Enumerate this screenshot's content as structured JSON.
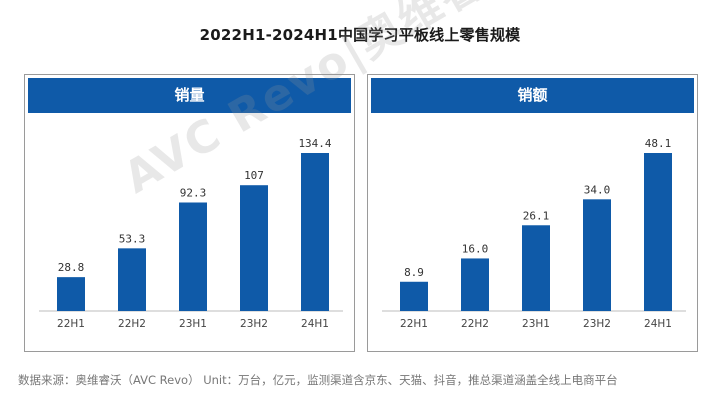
{
  "title": "2022H1-2024H1中国学习平板线上零售规模",
  "watermark": "AVC Revo|奥维睿沃",
  "source": "数据来源：奥维睿沃（AVC Revo） Unit：万台，亿元，监测渠道含京东、天猫、抖音，推总渠道涵盖全线上电商平台",
  "colors": {
    "bar": "#0f5aa8",
    "header": "#0f5aa8"
  },
  "chart_data": [
    {
      "type": "bar",
      "title": "销量",
      "categories": [
        "22H1",
        "22H2",
        "23H1",
        "23H2",
        "24H1"
      ],
      "values": [
        28.8,
        53.3,
        92.3,
        107,
        134.4
      ],
      "value_labels": [
        "28.8",
        "53.3",
        "92.3",
        "107",
        "134.4"
      ],
      "ylim": [
        0,
        134.4
      ],
      "grid": false
    },
    {
      "type": "bar",
      "title": "销额",
      "categories": [
        "22H1",
        "22H2",
        "23H1",
        "23H2",
        "24H1"
      ],
      "values": [
        8.9,
        16.0,
        26.1,
        34.0,
        48.1
      ],
      "value_labels": [
        "8.9",
        "16.0",
        "26.1",
        "34.0",
        "48.1"
      ],
      "ylim": [
        0,
        48.1
      ],
      "grid": false
    }
  ]
}
